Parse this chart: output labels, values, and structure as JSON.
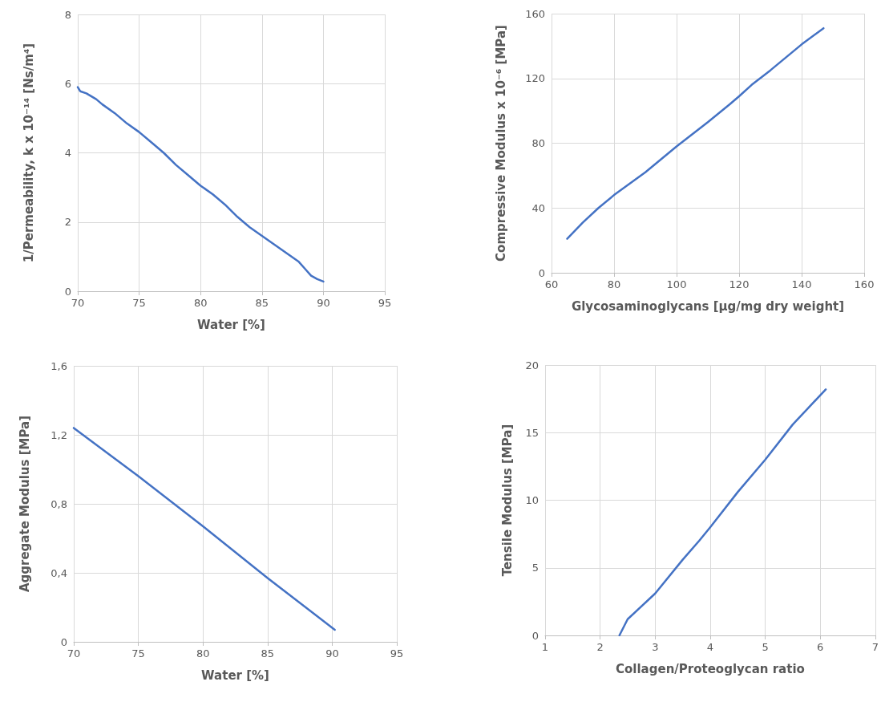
{
  "chart_data": [
    {
      "type": "line",
      "xlabel": "Water [%]",
      "ylabel": "1/Permeability, k x 10⁻¹⁴ [Ns/m⁴]",
      "xlim": [
        70,
        95
      ],
      "xticks": [
        70,
        75,
        80,
        85,
        90,
        95
      ],
      "ylim": [
        0,
        8
      ],
      "yticks": [
        0,
        2,
        4,
        6,
        8
      ],
      "grid": true,
      "marker": "none",
      "line_style": "solid",
      "series": [
        {
          "color": "#4472c4",
          "x": [
            70,
            70.2,
            70.7,
            71.5,
            72,
            73,
            74,
            75,
            76,
            77,
            78,
            79,
            80,
            81,
            82,
            83,
            84,
            85,
            86,
            87,
            88,
            88.5,
            89,
            89.5,
            90
          ],
          "values": [
            5.9,
            5.78,
            5.72,
            5.55,
            5.4,
            5.15,
            4.85,
            4.6,
            4.3,
            4.0,
            3.65,
            3.35,
            3.05,
            2.8,
            2.5,
            2.15,
            1.85,
            1.6,
            1.35,
            1.1,
            0.85,
            0.65,
            0.45,
            0.35,
            0.28
          ]
        }
      ]
    },
    {
      "type": "line",
      "xlabel": "Glycosaminoglycans [µg/mg dry weight]",
      "ylabel": "Compressive Modulus x 10⁻⁶ [MPa]",
      "xlim": [
        60,
        160
      ],
      "xticks": [
        60,
        80,
        100,
        120,
        140,
        160
      ],
      "ylim": [
        0,
        160
      ],
      "yticks": [
        0,
        40,
        80,
        120,
        160
      ],
      "grid": true,
      "marker": "none",
      "line_style": "solid",
      "series": [
        {
          "color": "#4472c4",
          "x": [
            65,
            70,
            75,
            80,
            90,
            100,
            110,
            117,
            120,
            124,
            130,
            140,
            147
          ],
          "values": [
            21,
            31,
            40,
            48,
            62,
            78,
            93,
            104,
            109,
            116,
            125,
            141,
            151
          ]
        }
      ]
    },
    {
      "type": "line",
      "xlabel": "Water [%]",
      "ylabel": "Aggregate Modulus [MPa]",
      "xlim": [
        70,
        95
      ],
      "xticks": [
        70,
        75,
        80,
        85,
        90,
        95
      ],
      "ylim": [
        0,
        1.6
      ],
      "yticks": [
        0,
        {
          "value": 0.4,
          "label": "0,4"
        },
        {
          "value": 0.8,
          "label": "0,8"
        },
        {
          "value": 1.2,
          "label": "1,2"
        },
        {
          "value": 1.6,
          "label": "1,6"
        }
      ],
      "grid": true,
      "marker": "none",
      "line_style": "solid",
      "series": [
        {
          "color": "#4472c4",
          "x": [
            70,
            75,
            80,
            85,
            90.2
          ],
          "values": [
            1.24,
            0.96,
            0.67,
            0.37,
            0.07
          ]
        }
      ]
    },
    {
      "type": "line",
      "xlabel": "Collagen/Proteoglycan ratio",
      "ylabel": "Tensile Modulus [MPa]",
      "xlim": [
        1,
        7
      ],
      "xticks": [
        1,
        2,
        3,
        4,
        5,
        6,
        7
      ],
      "ylim": [
        0,
        20
      ],
      "yticks": [
        0,
        5,
        10,
        15,
        20
      ],
      "grid": true,
      "marker": "none",
      "line_style": "solid",
      "series": [
        {
          "color": "#4472c4",
          "x": [
            2.35,
            2.5,
            3,
            3.5,
            3.8,
            4,
            4.5,
            5,
            5.5,
            6.1
          ],
          "values": [
            0,
            1.2,
            3.1,
            5.6,
            7.0,
            8,
            10.6,
            13,
            15.6,
            18.2
          ]
        }
      ]
    }
  ]
}
